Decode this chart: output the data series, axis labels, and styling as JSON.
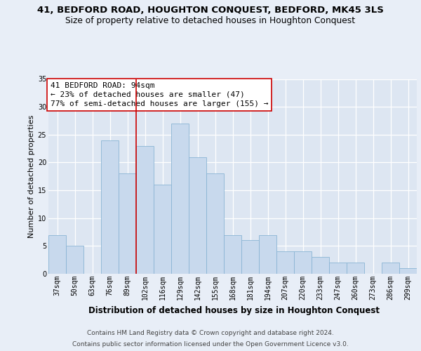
{
  "title1": "41, BEDFORD ROAD, HOUGHTON CONQUEST, BEDFORD, MK45 3LS",
  "title2": "Size of property relative to detached houses in Houghton Conquest",
  "xlabel": "Distribution of detached houses by size in Houghton Conquest",
  "ylabel": "Number of detached properties",
  "footnote1": "Contains HM Land Registry data © Crown copyright and database right 2024.",
  "footnote2": "Contains public sector information licensed under the Open Government Licence v3.0.",
  "annotation_line1": "41 BEDFORD ROAD: 94sqm",
  "annotation_line2": "← 23% of detached houses are smaller (47)",
  "annotation_line3": "77% of semi-detached houses are larger (155) →",
  "bar_color": "#c8d9ed",
  "bar_edge_color": "#8ab4d4",
  "red_line_color": "#cc0000",
  "categories": [
    "37sqm",
    "50sqm",
    "63sqm",
    "76sqm",
    "89sqm",
    "102sqm",
    "116sqm",
    "129sqm",
    "142sqm",
    "155sqm",
    "168sqm",
    "181sqm",
    "194sqm",
    "207sqm",
    "220sqm",
    "233sqm",
    "247sqm",
    "260sqm",
    "273sqm",
    "286sqm",
    "299sqm"
  ],
  "values": [
    7,
    5,
    0,
    24,
    18,
    23,
    16,
    27,
    21,
    18,
    7,
    6,
    7,
    4,
    4,
    3,
    2,
    2,
    0,
    2,
    1
  ],
  "red_line_x": 4.5,
  "ylim": [
    0,
    35
  ],
  "yticks": [
    0,
    5,
    10,
    15,
    20,
    25,
    30,
    35
  ],
  "bg_color": "#dde6f2",
  "fig_bg_color": "#e8eef7",
  "grid_color": "#ffffff",
  "title1_fontsize": 9.5,
  "title2_fontsize": 8.8,
  "xlabel_fontsize": 8.5,
  "ylabel_fontsize": 8.0,
  "tick_fontsize": 7.0,
  "annotation_fontsize": 8.0,
  "footnote_fontsize": 6.5
}
